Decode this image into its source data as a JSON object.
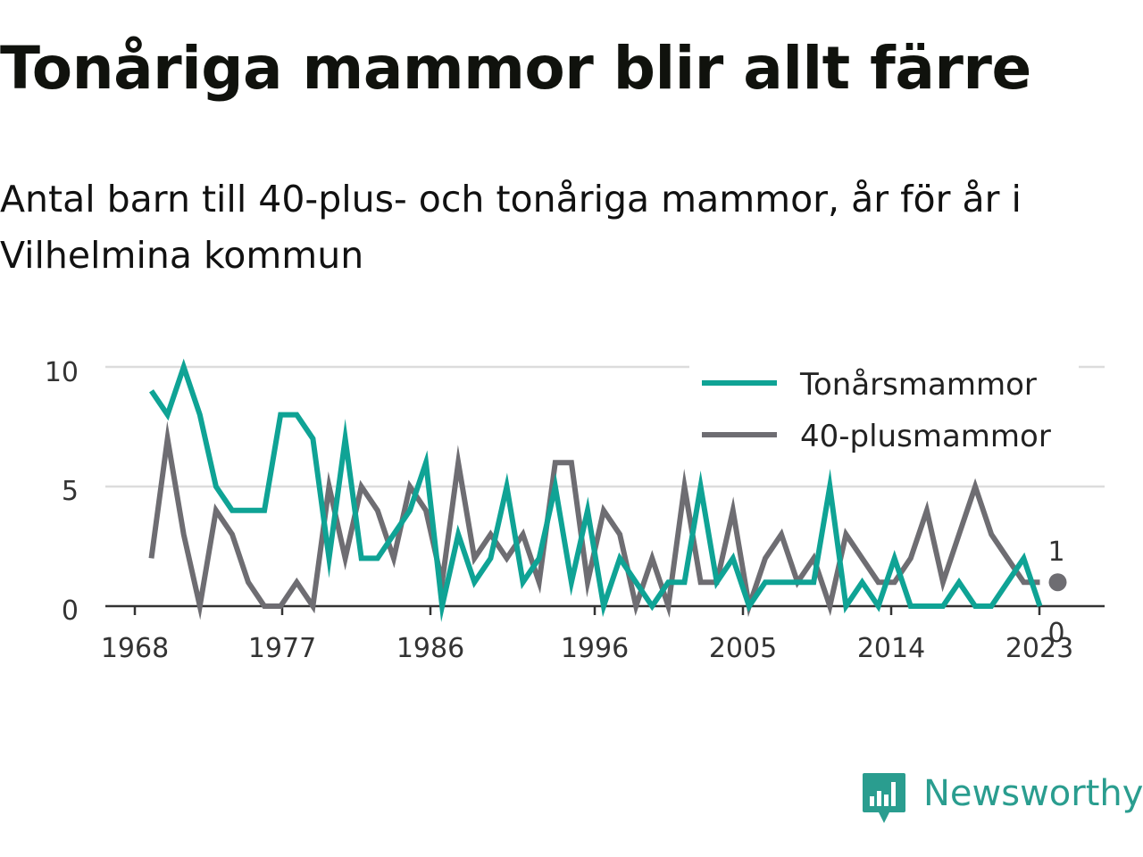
{
  "title": "Tonåriga mammor blir allt färre",
  "subtitle": "Antal barn till 40-plus- och tonåriga mammor, år för år i Vilhelmina kommun",
  "brand": {
    "name": "Newsworthy",
    "color": "#2a9d8f",
    "icon": "bar-chart-speech-bubble-icon"
  },
  "chart_data": {
    "type": "line",
    "x": [
      1969,
      1970,
      1971,
      1972,
      1973,
      1974,
      1975,
      1976,
      1977,
      1978,
      1979,
      1980,
      1981,
      1982,
      1983,
      1984,
      1985,
      1986,
      1987,
      1988,
      1989,
      1990,
      1991,
      1992,
      1993,
      1994,
      1995,
      1996,
      1997,
      1998,
      1999,
      2000,
      2001,
      2002,
      2003,
      2004,
      2005,
      2006,
      2007,
      2008,
      2009,
      2010,
      2011,
      2012,
      2013,
      2014,
      2015,
      2016,
      2017,
      2018,
      2019,
      2020,
      2021,
      2022,
      2023,
      2024
    ],
    "series": [
      {
        "name": "Tonårsmammor",
        "color": "#0fa395",
        "values": [
          9,
          8,
          10,
          8,
          5,
          4,
          4,
          4,
          8,
          8,
          7,
          2,
          7,
          2,
          2,
          3,
          4,
          6,
          0,
          3,
          1,
          2,
          5,
          1,
          2,
          5,
          1,
          4,
          0,
          2,
          1,
          0,
          1,
          1,
          5,
          1,
          2,
          0,
          1,
          1,
          1,
          1,
          5,
          0,
          1,
          0,
          2,
          0,
          0,
          0,
          1,
          0,
          0,
          1,
          2,
          0
        ]
      },
      {
        "name": "40-plusmammor",
        "color": "#6e6d72",
        "values": [
          2,
          7,
          3,
          0,
          4,
          3,
          1,
          0,
          0,
          1,
          0,
          5,
          2,
          5,
          4,
          2,
          5,
          4,
          1,
          6,
          2,
          3,
          2,
          3,
          1,
          6,
          6,
          1,
          4,
          3,
          0,
          2,
          0,
          5,
          1,
          1,
          4,
          0,
          2,
          3,
          1,
          2,
          0,
          3,
          2,
          1,
          1,
          2,
          4,
          1,
          3,
          5,
          3,
          2,
          1,
          1
        ]
      }
    ],
    "xticks": [
      "1968",
      "1977",
      "1986",
      "1996",
      "2005",
      "2014",
      "2023"
    ],
    "ylim": [
      0,
      10
    ],
    "yticks": [
      "0",
      "5",
      "10"
    ],
    "end_labels": [
      "1",
      "0"
    ],
    "grid": true,
    "legend_position": "top-right",
    "xlabel": "",
    "ylabel": ""
  }
}
